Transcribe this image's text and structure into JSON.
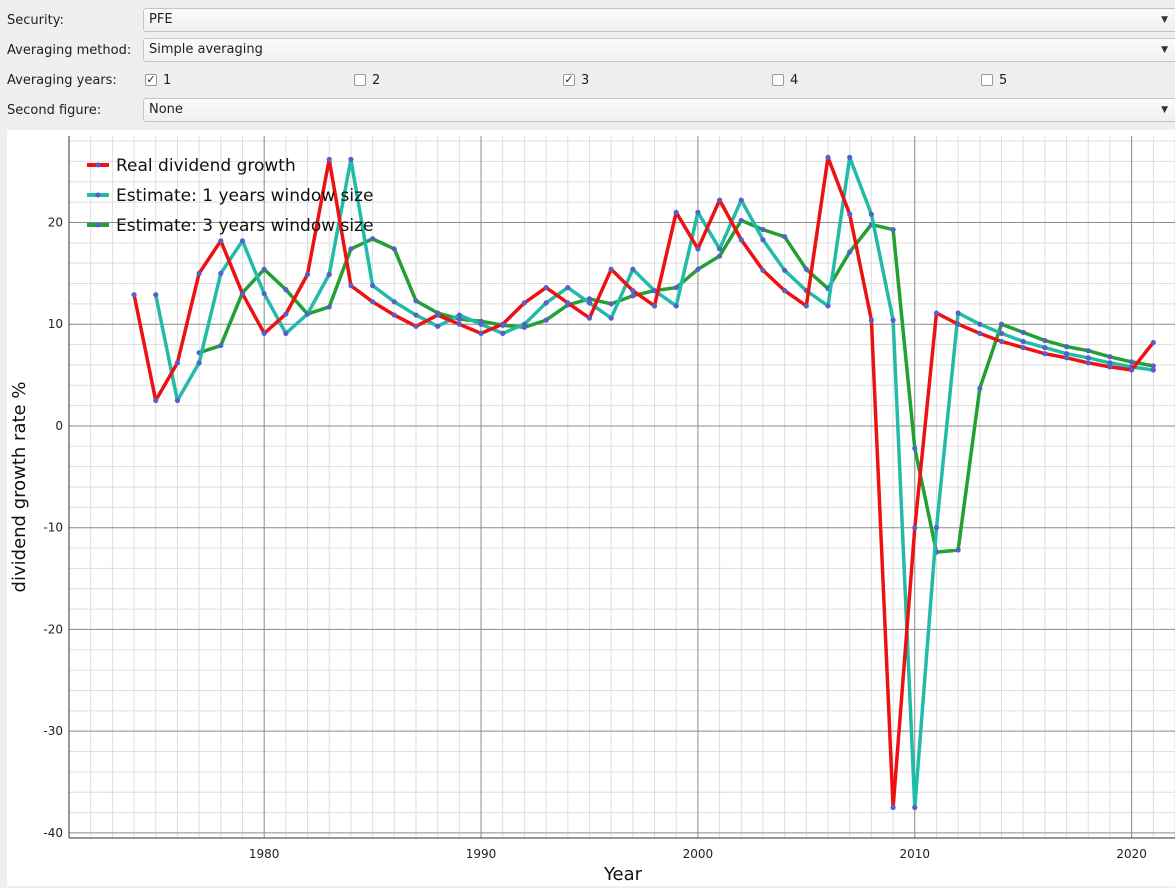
{
  "controls": {
    "security": {
      "label": "Security:",
      "value": "PFE"
    },
    "averaging_method": {
      "label": "Averaging method:",
      "value": "Simple averaging"
    },
    "averaging_years": {
      "label": "Averaging years:",
      "options": [
        {
          "label": "1",
          "checked": true
        },
        {
          "label": "2",
          "checked": false
        },
        {
          "label": "3",
          "checked": true
        },
        {
          "label": "4",
          "checked": false
        },
        {
          "label": "5",
          "checked": false
        }
      ]
    },
    "second_figure": {
      "label": "Second figure:",
      "value": "None"
    }
  },
  "chart_data": {
    "type": "line",
    "xlabel": "Year",
    "ylabel": "dividend growth rate %",
    "xlim": [
      1971,
      2022
    ],
    "ylim": [
      -40.5,
      28.5
    ],
    "xticks": [
      1980,
      1990,
      2000,
      2010,
      2020
    ],
    "yticks": [
      -40,
      -30,
      -20,
      -10,
      0,
      10,
      20
    ],
    "grid": true,
    "legend_position": "top-left",
    "series": [
      {
        "name": "Real dividend growth",
        "color": "#ee1111",
        "x": [
          1974,
          1975,
          1976,
          1977,
          1978,
          1979,
          1980,
          1981,
          1982,
          1983,
          1984,
          1985,
          1986,
          1987,
          1988,
          1989,
          1990,
          1991,
          1992,
          1993,
          1994,
          1995,
          1996,
          1997,
          1998,
          1999,
          2000,
          2001,
          2002,
          2003,
          2004,
          2005,
          2006,
          2007,
          2008,
          2009,
          2010,
          2011,
          2012,
          2013,
          2014,
          2015,
          2016,
          2017,
          2018,
          2019,
          2020,
          2021
        ],
        "y": [
          12.9,
          2.5,
          6.2,
          15.0,
          18.2,
          13.0,
          9.1,
          11.0,
          14.9,
          26.2,
          13.8,
          12.2,
          10.9,
          9.8,
          10.9,
          10.0,
          9.1,
          10.0,
          12.1,
          13.6,
          12.1,
          10.6,
          15.4,
          13.3,
          11.8,
          21.0,
          17.4,
          22.2,
          18.3,
          15.3,
          13.3,
          11.8,
          26.4,
          20.8,
          10.4,
          -37.5,
          -10.0,
          11.1,
          10.0,
          9.1,
          8.3,
          7.7,
          7.1,
          6.7,
          6.2,
          5.8,
          5.5,
          8.2
        ]
      },
      {
        "name": "Estimate: 1 years window size",
        "color": "#22bbaa",
        "x": [
          1975,
          1976,
          1977,
          1978,
          1979,
          1980,
          1981,
          1982,
          1983,
          1984,
          1985,
          1986,
          1987,
          1988,
          1989,
          1990,
          1991,
          1992,
          1993,
          1994,
          1995,
          1996,
          1997,
          1998,
          1999,
          2000,
          2001,
          2002,
          2003,
          2004,
          2005,
          2006,
          2007,
          2008,
          2009,
          2010,
          2011,
          2012,
          2013,
          2014,
          2015,
          2016,
          2017,
          2018,
          2019,
          2020,
          2021
        ],
        "y": [
          12.9,
          2.5,
          6.2,
          15.0,
          18.2,
          13.0,
          9.1,
          11.0,
          14.9,
          26.2,
          13.8,
          12.2,
          10.9,
          9.8,
          10.9,
          10.0,
          9.1,
          10.0,
          12.1,
          13.6,
          12.1,
          10.6,
          15.4,
          13.3,
          11.8,
          21.0,
          17.4,
          22.2,
          18.3,
          15.3,
          13.3,
          11.8,
          26.4,
          20.8,
          10.4,
          -37.5,
          -10.0,
          11.1,
          10.0,
          9.1,
          8.3,
          7.7,
          7.1,
          6.7,
          6.2,
          5.8,
          5.5
        ]
      },
      {
        "name": "Estimate: 3 years window size",
        "color": "#22a033",
        "x": [
          1977,
          1978,
          1979,
          1980,
          1981,
          1982,
          1983,
          1984,
          1985,
          1986,
          1987,
          1988,
          1989,
          1990,
          1991,
          1992,
          1993,
          1994,
          1995,
          1996,
          1997,
          1998,
          1999,
          2000,
          2001,
          2002,
          2003,
          2004,
          2005,
          2006,
          2007,
          2008,
          2009,
          2010,
          2011,
          2012,
          2013,
          2014,
          2015,
          2016,
          2017,
          2018,
          2019,
          2020,
          2021
        ],
        "y": [
          7.2,
          7.9,
          13.1,
          15.4,
          13.4,
          11.0,
          11.7,
          17.4,
          18.4,
          17.4,
          12.3,
          11.1,
          10.5,
          10.3,
          9.9,
          9.7,
          10.4,
          11.9,
          12.5,
          12.0,
          12.8,
          13.3,
          13.6,
          15.4,
          16.7,
          20.2,
          19.3,
          18.6,
          15.4,
          13.5,
          17.1,
          19.8,
          19.3,
          -2.2,
          -12.4,
          -12.2,
          3.7,
          10.0,
          9.2,
          8.4,
          7.8,
          7.4,
          6.8,
          6.3,
          5.9
        ]
      }
    ]
  }
}
